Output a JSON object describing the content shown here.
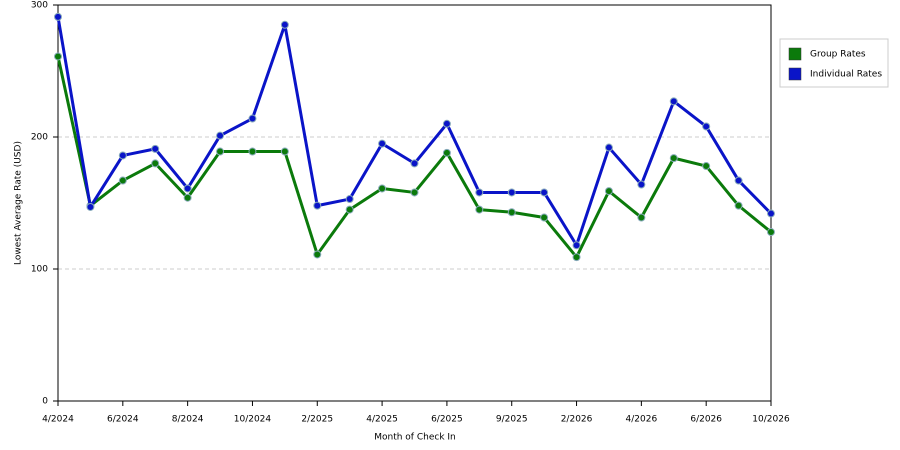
{
  "chart_data": {
    "type": "line",
    "x_label": "Month of Check In",
    "y_label": "Lowest Average Rate (USD)",
    "categories": [
      "4/2024",
      null,
      "6/2024",
      null,
      "8/2024",
      null,
      "10/2024",
      null,
      "2/2025",
      null,
      "4/2025",
      null,
      "6/2025",
      null,
      "9/2025",
      null,
      "2/2026",
      null,
      "4/2026",
      null,
      "6/2026",
      null,
      "10/2026"
    ],
    "series": [
      {
        "name": "Group Rates",
        "color": "#0b7a0b",
        "values": [
          261,
          148,
          167,
          180,
          154,
          189,
          189,
          189,
          111,
          145,
          161,
          158,
          188,
          145,
          143,
          139,
          109,
          159,
          139,
          184,
          178,
          148,
          128
        ]
      },
      {
        "name": "Individual Rates",
        "color": "#0a14c8",
        "values": [
          291,
          147,
          186,
          191,
          161,
          201,
          214,
          285,
          148,
          153,
          195,
          180,
          210,
          158,
          158,
          158,
          118,
          192,
          164,
          227,
          208,
          167,
          142
        ]
      }
    ],
    "ylim": [
      0,
      300
    ],
    "yticks": [
      0,
      100,
      200,
      300
    ],
    "grid": true,
    "legend": "right"
  }
}
